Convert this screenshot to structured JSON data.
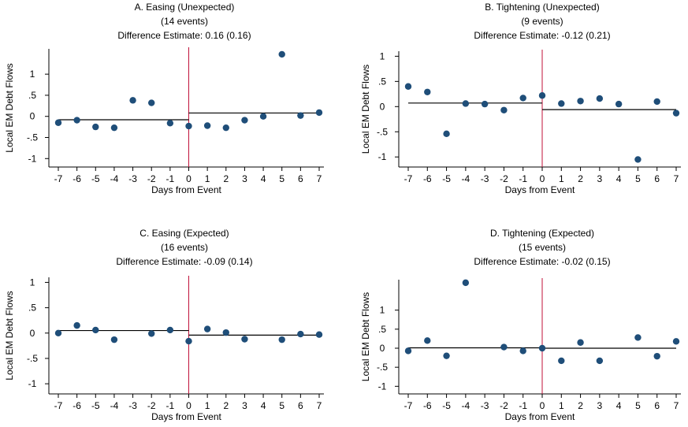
{
  "colors": {
    "marker": "#1f4e79",
    "event_line": "#c0103a",
    "fit_line": "#000000",
    "axis": "#000000"
  },
  "chart_data": [
    {
      "type": "scatter",
      "title": "A. Easing (Unexpected)",
      "subtitle": "(14 events)",
      "estimate": "Difference Estimate: 0.16 (0.16)",
      "xlabel": "Days from Event",
      "ylabel": "Local EM Debt Flows",
      "xlim": [
        -7,
        7
      ],
      "ylim": [
        -1.2,
        1.6
      ],
      "xticks": [
        -7,
        -6,
        -5,
        -4,
        -3,
        -2,
        -1,
        0,
        1,
        2,
        3,
        4,
        5,
        6,
        7
      ],
      "yticks": [
        -1,
        -0.5,
        0,
        0.5,
        1
      ],
      "yticklabels": [
        "-1",
        "-.5",
        "0",
        ".5",
        "1"
      ],
      "event_line_x": 0,
      "pre_mean": -0.08,
      "post_mean": 0.08,
      "x": [
        -7,
        -6,
        -5,
        -4,
        -3,
        -2,
        -1,
        0,
        1,
        2,
        3,
        4,
        5,
        6,
        7
      ],
      "y": [
        -0.15,
        -0.09,
        -0.25,
        -0.27,
        0.38,
        0.32,
        -0.16,
        -0.23,
        -0.22,
        -0.27,
        -0.09,
        0.0,
        1.47,
        0.02,
        0.09
      ]
    },
    {
      "type": "scatter",
      "title": "B. Tightening (Unexpected)",
      "subtitle": "(9 events)",
      "estimate": "Difference Estimate: -0.12 (0.21)",
      "xlabel": "Days from Event",
      "ylabel": "Local EM Debt Flows",
      "xlim": [
        -7,
        7
      ],
      "ylim": [
        -1.2,
        1.1
      ],
      "xticks": [
        -7,
        -6,
        -5,
        -4,
        -3,
        -2,
        -1,
        0,
        1,
        2,
        3,
        4,
        5,
        6,
        7
      ],
      "yticks": [
        -1,
        -0.5,
        0,
        0.5,
        1
      ],
      "yticklabels": [
        "-1",
        "-.5",
        "0",
        ".5",
        "1"
      ],
      "event_line_x": 0,
      "pre_mean": 0.07,
      "post_mean": -0.06,
      "x": [
        -7,
        -6,
        -5,
        -4,
        -3,
        -2,
        -1,
        0,
        1,
        2,
        3,
        4,
        5,
        6,
        7
      ],
      "y": [
        0.4,
        0.29,
        -0.54,
        0.06,
        0.05,
        -0.07,
        0.17,
        0.22,
        0.06,
        0.11,
        0.16,
        0.05,
        -1.05,
        0.1,
        -0.13
      ]
    },
    {
      "type": "scatter",
      "title": "C. Easing (Expected)",
      "subtitle": "(16 events)",
      "estimate": "Difference Estimate: -0.09 (0.14)",
      "xlabel": "Days from Event",
      "ylabel": "Local EM Debt Flows",
      "xlim": [
        -7,
        7
      ],
      "ylim": [
        -1.2,
        1.1
      ],
      "xticks": [
        -7,
        -6,
        -5,
        -4,
        -3,
        -2,
        -1,
        0,
        1,
        2,
        3,
        4,
        5,
        6,
        7
      ],
      "yticks": [
        -1,
        -0.5,
        0,
        0.5,
        1
      ],
      "yticklabels": [
        "-1",
        "-.5",
        "0",
        ".5",
        "1"
      ],
      "event_line_x": 0,
      "pre_mean": 0.05,
      "post_mean": -0.04,
      "x": [
        -7,
        -6,
        -5,
        -4,
        -2,
        -1,
        0,
        1,
        2,
        3,
        5,
        6,
        7
      ],
      "y": [
        0.0,
        0.15,
        0.06,
        -0.13,
        -0.01,
        0.06,
        -0.16,
        0.08,
        0.01,
        -0.12,
        -0.13,
        -0.02,
        -0.03
      ]
    },
    {
      "type": "scatter",
      "title": "D. Tightening (Expected)",
      "subtitle": "(15 events)",
      "estimate": "Difference Estimate: -0.02 (0.15)",
      "xlabel": "Days from Event",
      "ylabel": "Local EM Debt Flows",
      "xlim": [
        -7,
        7
      ],
      "ylim": [
        -1.2,
        1.8
      ],
      "xticks": [
        -7,
        -6,
        -5,
        -4,
        -3,
        -2,
        -1,
        0,
        1,
        2,
        3,
        4,
        5,
        6,
        7
      ],
      "yticks": [
        -1,
        -0.5,
        0,
        0.5,
        1
      ],
      "yticklabels": [
        "-1",
        "-.5",
        "0",
        ".5",
        "1"
      ],
      "event_line_x": 0,
      "pre_mean": 0.01,
      "post_mean": 0.0,
      "x": [
        -7,
        -6,
        -5,
        -4,
        -2,
        -1,
        0,
        1,
        2,
        3,
        5,
        6,
        7
      ],
      "y": [
        -0.07,
        0.2,
        -0.2,
        1.72,
        0.03,
        -0.07,
        0.0,
        -0.33,
        0.15,
        -0.33,
        0.28,
        -0.21,
        0.18
      ]
    }
  ]
}
